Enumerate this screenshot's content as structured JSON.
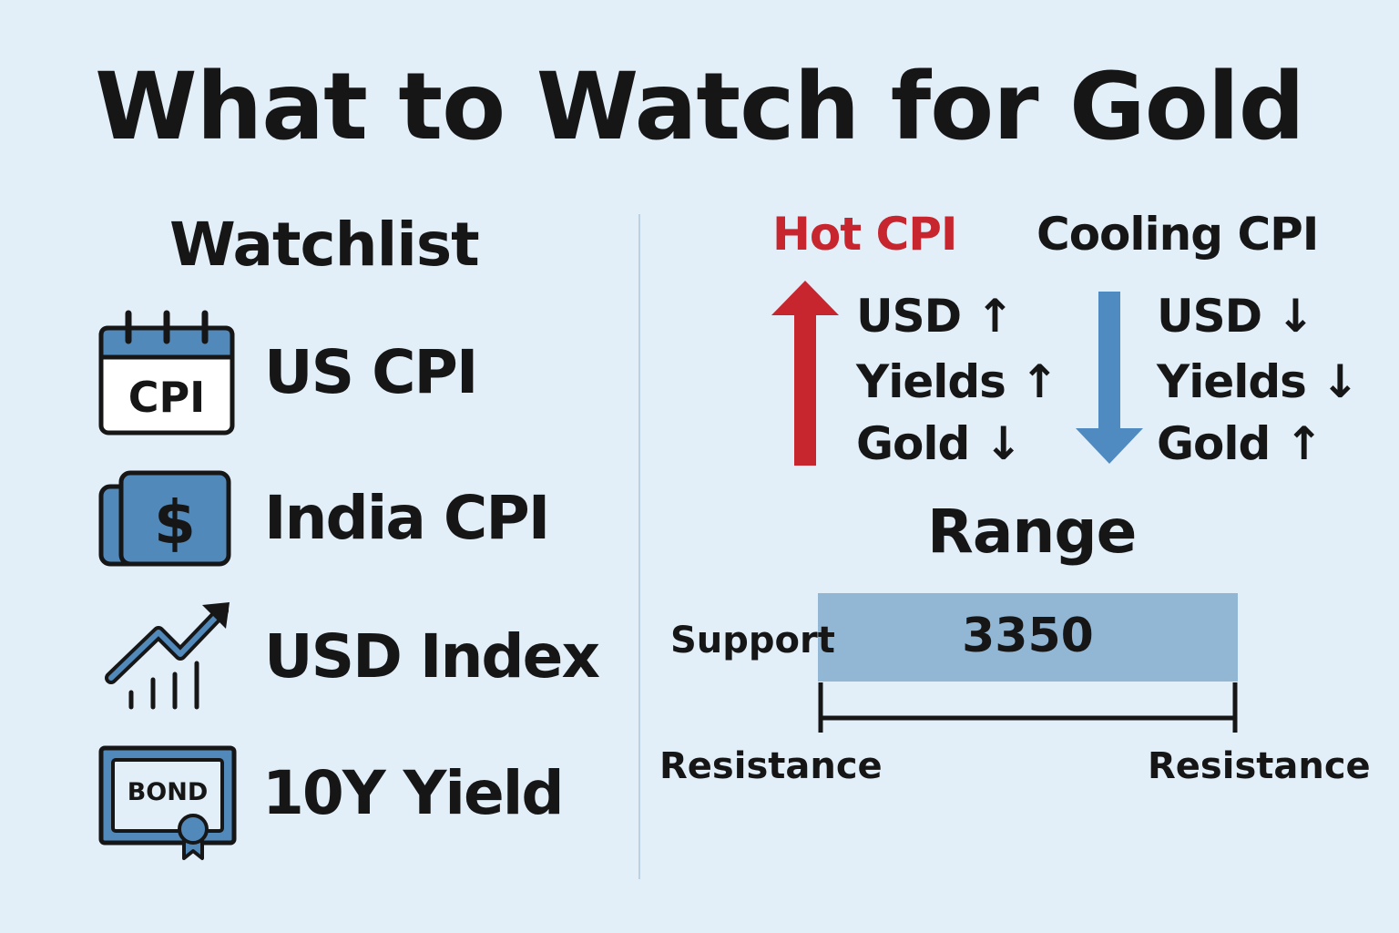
{
  "title": "What to Watch for Gold",
  "watchlist": {
    "heading": "Watchlist",
    "items": [
      {
        "label": "US CPI",
        "icon": "calendar-cpi-icon",
        "icon_text": "CPI"
      },
      {
        "label": "India CPI",
        "icon": "dollar-banknote-icon",
        "icon_text": "$"
      },
      {
        "label": "USD Index",
        "icon": "trending-chart-icon"
      },
      {
        "label": "10Y Yield",
        "icon": "bond-certificate-icon",
        "icon_text": "BOND"
      }
    ]
  },
  "scenarios": [
    {
      "heading": "Hot CPI",
      "heading_color": "#c8262f",
      "arrow": "up",
      "arrow_color": "#c8262f",
      "effects": [
        "USD ↑",
        "Yields ↑",
        "Gold ↓"
      ]
    },
    {
      "heading": "Cooling CPI",
      "heading_color": "#161616",
      "arrow": "down",
      "arrow_color": "#4f8bc0",
      "effects": [
        "USD ↓",
        "Yields ↓",
        "Gold ↑"
      ]
    }
  ],
  "range": {
    "heading": "Range",
    "value": "3350",
    "support_label": "Support",
    "resistance_left": "Resistance",
    "resistance_right": "Resistance",
    "bar_color": "#92b7d4"
  },
  "colors": {
    "background": "#e2eff8",
    "icon_blue": "#5289bb",
    "red": "#c8262f",
    "blue": "#4f8bc0"
  }
}
